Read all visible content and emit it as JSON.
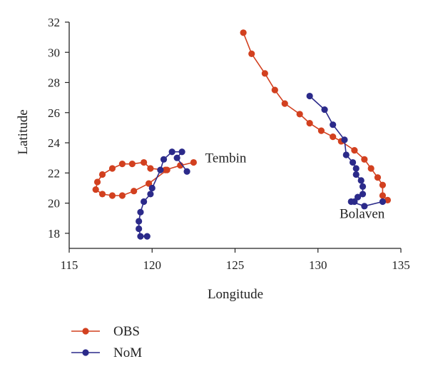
{
  "chart_data": {
    "type": "line",
    "title": "",
    "xlabel": "Longitude",
    "ylabel": "Latitude",
    "xlim": [
      115,
      135
    ],
    "ylim": [
      17,
      32
    ],
    "xticks": [
      115,
      120,
      125,
      130,
      135
    ],
    "yticks": [
      18,
      20,
      22,
      24,
      26,
      28,
      30,
      32
    ],
    "grid": false,
    "legend_position": "bottom-left",
    "annotations": [
      {
        "text": "Tembin",
        "x": 123.2,
        "y": 22.7
      },
      {
        "text": "Bolaven",
        "x": 131.3,
        "y": 19.0
      }
    ],
    "series": [
      {
        "name": "OBS",
        "color": "#d2401f",
        "tracks": [
          [
            [
              122.5,
              22.7
            ],
            [
              121.7,
              22.5
            ],
            [
              120.8,
              22.2
            ],
            [
              119.9,
              22.3
            ],
            [
              119.5,
              22.7
            ],
            [
              118.8,
              22.6
            ],
            [
              118.2,
              22.6
            ],
            [
              117.6,
              22.3
            ],
            [
              117.0,
              21.9
            ],
            [
              116.7,
              21.4
            ],
            [
              116.6,
              20.9
            ],
            [
              117.0,
              20.6
            ],
            [
              117.6,
              20.5
            ],
            [
              118.2,
              20.5
            ],
            [
              118.9,
              20.8
            ],
            [
              119.8,
              21.3
            ],
            [
              120.9,
              22.2
            ]
          ],
          [
            [
              125.5,
              31.3
            ],
            [
              126.0,
              29.9
            ],
            [
              126.8,
              28.6
            ],
            [
              127.4,
              27.5
            ],
            [
              128.0,
              26.6
            ],
            [
              128.9,
              25.9
            ],
            [
              129.5,
              25.3
            ],
            [
              130.2,
              24.8
            ],
            [
              130.9,
              24.4
            ],
            [
              131.4,
              24.1
            ],
            [
              132.2,
              23.5
            ],
            [
              132.8,
              22.9
            ],
            [
              133.2,
              22.3
            ],
            [
              133.6,
              21.7
            ],
            [
              133.9,
              21.2
            ],
            [
              133.9,
              20.5
            ],
            [
              134.2,
              20.2
            ]
          ]
        ]
      },
      {
        "name": "NoM",
        "color": "#2b2a8a",
        "tracks": [
          [
            [
              119.7,
              17.8
            ],
            [
              119.3,
              17.8
            ],
            [
              119.2,
              18.3
            ],
            [
              119.2,
              18.8
            ],
            [
              119.3,
              19.4
            ],
            [
              119.5,
              20.1
            ],
            [
              119.9,
              20.6
            ],
            [
              120.0,
              21.0
            ],
            [
              120.5,
              22.2
            ],
            [
              120.7,
              22.9
            ],
            [
              121.2,
              23.4
            ],
            [
              121.8,
              23.4
            ],
            [
              121.5,
              23.0
            ],
            [
              122.1,
              22.1
            ]
          ],
          [
            [
              129.5,
              27.1
            ],
            [
              130.4,
              26.2
            ],
            [
              130.9,
              25.2
            ],
            [
              131.6,
              24.2
            ],
            [
              131.7,
              23.2
            ],
            [
              132.1,
              22.7
            ],
            [
              132.3,
              22.3
            ],
            [
              132.3,
              21.9
            ],
            [
              132.6,
              21.5
            ],
            [
              132.7,
              21.1
            ],
            [
              132.7,
              20.6
            ],
            [
              132.4,
              20.4
            ],
            [
              132.2,
              20.1
            ],
            [
              132.0,
              20.1
            ],
            [
              132.8,
              19.8
            ],
            [
              133.9,
              20.1
            ]
          ]
        ]
      }
    ]
  }
}
